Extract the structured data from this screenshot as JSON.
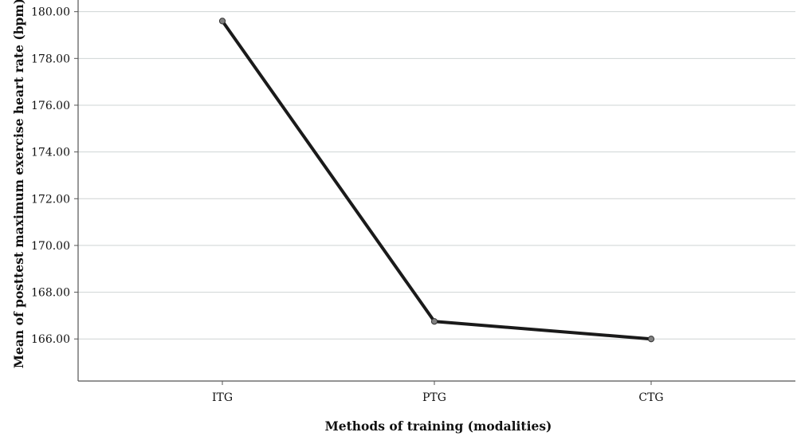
{
  "chart_data": {
    "type": "line",
    "title": "",
    "xlabel": "Methods of training (modalities)",
    "ylabel": "Mean of posttest maximum exercise heart rate (bpm)",
    "categories": [
      "ITG",
      "PTG",
      "CTG"
    ],
    "series": [
      {
        "values": [
          179.6,
          166.75,
          166.0
        ]
      }
    ],
    "ylim": [
      164.2,
      180.5
    ],
    "yticks": [
      "166.00",
      "168.00",
      "170.00",
      "172.00",
      "174.00",
      "176.00",
      "178.00",
      "180.00"
    ],
    "grid": true,
    "colors": {
      "line": "#1a1a1a",
      "marker": "#808080",
      "grid": "#cfd4d4",
      "axis": "#555555"
    }
  }
}
